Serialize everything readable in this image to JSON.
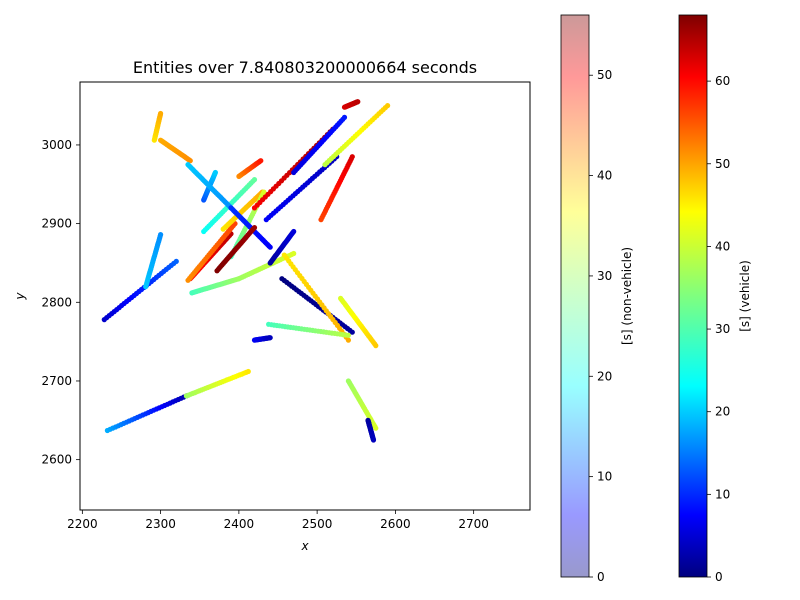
{
  "chart_data": {
    "type": "scatter",
    "title": "Entities over 7.840803200000664 seconds",
    "xlabel": "x",
    "ylabel": "y",
    "xlim": [
      2197,
      2772
    ],
    "ylim": [
      2536,
      3080
    ],
    "xticks": [
      2200,
      2300,
      2400,
      2500,
      2600,
      2700
    ],
    "yticks": [
      2600,
      2700,
      2800,
      2900,
      3000
    ],
    "grid": false,
    "colorbars": [
      {
        "label": "[s] (non-vehicle)",
        "colormap": "jet",
        "alpha": 0.4,
        "range": [
          0,
          56
        ],
        "ticks": [
          0,
          10,
          20,
          30,
          40,
          50
        ]
      },
      {
        "label": "[s] (vehicle)",
        "colormap": "jet",
        "alpha": 1.0,
        "range": [
          0,
          68
        ],
        "ticks": [
          0,
          10,
          20,
          30,
          40,
          50,
          60
        ]
      }
    ],
    "series": [
      {
        "t": [
          20,
          3
        ],
        "x": [
          2232,
          2333
        ],
        "y": [
          2637,
          2681
        ]
      },
      {
        "t": [
          36,
          44
        ],
        "x": [
          2333,
          2412
        ],
        "y": [
          2681,
          2712
        ]
      },
      {
        "t": [
          5,
          15
        ],
        "x": [
          2228,
          2320
        ],
        "y": [
          2778,
          2852
        ]
      },
      {
        "t": [
          44,
          48
        ],
        "x": [
          2292,
          2300
        ],
        "y": [
          3006,
          3040
        ]
      },
      {
        "t": [
          48,
          50
        ],
        "x": [
          2300,
          2338
        ],
        "y": [
          3006,
          2980
        ]
      },
      {
        "t": [
          22,
          18
        ],
        "x": [
          2281,
          2300
        ],
        "y": [
          2820,
          2886
        ]
      },
      {
        "t": [
          14,
          22
        ],
        "x": [
          2355,
          2370
        ],
        "y": [
          2930,
          2965
        ]
      },
      {
        "t": [
          58,
          64
        ],
        "x": [
          2338,
          2390
        ],
        "y": [
          2830,
          2887
        ]
      },
      {
        "t": [
          50,
          55
        ],
        "x": [
          2335,
          2395
        ],
        "y": [
          2828,
          2900
        ]
      },
      {
        "t": [
          44,
          48
        ],
        "x": [
          2380,
          2430
        ],
        "y": [
          2893,
          2940
        ]
      },
      {
        "t": [
          30,
          40
        ],
        "x": [
          2390,
          2432
        ],
        "y": [
          2858,
          2940
        ]
      },
      {
        "t": [
          30,
          36
        ],
        "x": [
          2340,
          2400
        ],
        "y": [
          2812,
          2830
        ]
      },
      {
        "t": [
          36,
          40
        ],
        "x": [
          2400,
          2470
        ],
        "y": [
          2830,
          2862
        ]
      },
      {
        "t": [
          26,
          32
        ],
        "x": [
          2355,
          2420
        ],
        "y": [
          2890,
          2956
        ]
      },
      {
        "t": [
          50,
          58
        ],
        "x": [
          2400,
          2428
        ],
        "y": [
          2960,
          2980
        ]
      },
      {
        "t": [
          22,
          18
        ],
        "x": [
          2335,
          2390
        ],
        "y": [
          2975,
          2920
        ]
      },
      {
        "t": [
          12,
          8
        ],
        "x": [
          2390,
          2440
        ],
        "y": [
          2920,
          2870
        ]
      },
      {
        "t": [
          68,
          66
        ],
        "x": [
          2372,
          2420
        ],
        "y": [
          2840,
          2895
        ]
      },
      {
        "t": [
          60,
          66
        ],
        "x": [
          2420,
          2520
        ],
        "y": [
          2920,
          3020
        ]
      },
      {
        "t": [
          8,
          4
        ],
        "x": [
          2435,
          2525
        ],
        "y": [
          2905,
          2985
        ]
      },
      {
        "t": [
          6,
          10
        ],
        "x": [
          2470,
          2535
        ],
        "y": [
          2965,
          3035
        ]
      },
      {
        "t": [
          38,
          46
        ],
        "x": [
          2510,
          2590
        ],
        "y": [
          2975,
          3050
        ]
      },
      {
        "t": [
          62,
          64
        ],
        "x": [
          2535,
          2552
        ],
        "y": [
          3048,
          3055
        ]
      },
      {
        "t": [
          55,
          62
        ],
        "x": [
          2505,
          2545
        ],
        "y": [
          2905,
          2985
        ]
      },
      {
        "t": [
          2,
          6
        ],
        "x": [
          2440,
          2470
        ],
        "y": [
          2850,
          2890
        ]
      },
      {
        "t": [
          0,
          2
        ],
        "x": [
          2455,
          2545
        ],
        "y": [
          2830,
          2762
        ]
      },
      {
        "t": [
          44,
          48
        ],
        "x": [
          2458,
          2540
        ],
        "y": [
          2860,
          2752
        ]
      },
      {
        "t": [
          30,
          38
        ],
        "x": [
          2438,
          2540
        ],
        "y": [
          2772,
          2758
        ]
      },
      {
        "t": [
          40,
          46
        ],
        "x": [
          2530,
          2575
        ],
        "y": [
          2805,
          2745
        ]
      },
      {
        "t": [
          36,
          40
        ],
        "x": [
          2540,
          2575
        ],
        "y": [
          2700,
          2640
        ]
      },
      {
        "t": [
          2,
          4
        ],
        "x": [
          2565,
          2572
        ],
        "y": [
          2650,
          2625
        ]
      },
      {
        "t": [
          8,
          4
        ],
        "x": [
          2420,
          2440
        ],
        "y": [
          2752,
          2755
        ]
      }
    ]
  }
}
